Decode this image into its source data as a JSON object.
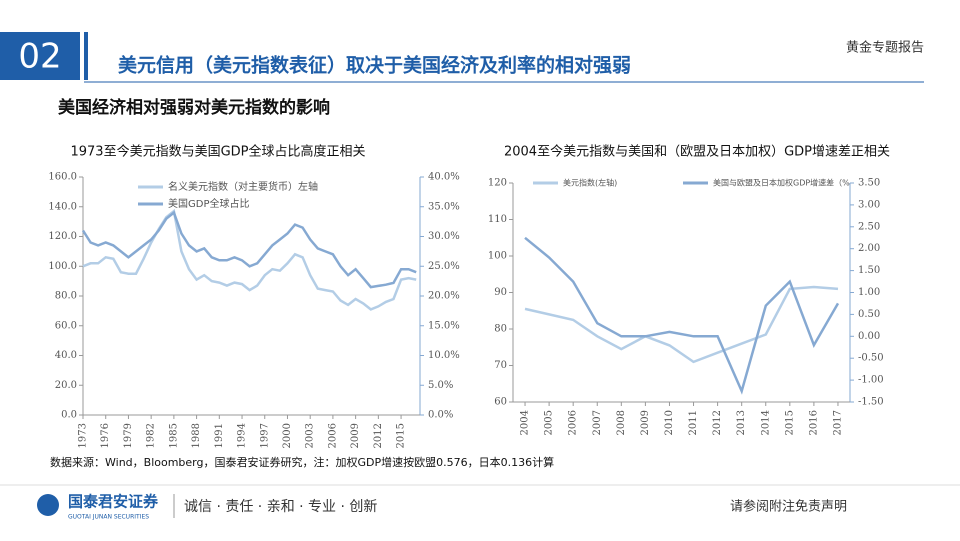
{
  "header": {
    "number": "02",
    "title": "美元信用（美元指数表征）取决于美国经济及利率的相对强弱",
    "report": "黄金专题报告",
    "subtitle": "美国经济相对强弱对美元指数的影响"
  },
  "chart_data": [
    {
      "type": "line",
      "title": "1973至今美元指数与美国GDP全球占比高度正相关",
      "x": [
        1973,
        1974,
        1975,
        1976,
        1977,
        1978,
        1979,
        1980,
        1981,
        1982,
        1983,
        1984,
        1985,
        1986,
        1987,
        1988,
        1989,
        1990,
        1991,
        1992,
        1993,
        1994,
        1995,
        1996,
        1997,
        1998,
        1999,
        2000,
        2001,
        2002,
        2003,
        2004,
        2005,
        2006,
        2007,
        2008,
        2009,
        2010,
        2011,
        2012,
        2013,
        2014,
        2015,
        2016,
        2017
      ],
      "series": [
        {
          "name": "名义美元指数（对主要货币）左轴",
          "color": "#b3cde6",
          "axis": "y",
          "values": [
            100,
            102,
            102,
            106,
            105,
            96,
            95,
            95,
            105,
            116,
            125,
            133,
            137,
            110,
            98,
            91,
            94,
            90,
            89,
            87,
            89,
            88,
            84,
            87,
            94,
            98,
            97,
            102,
            108,
            106,
            94,
            85,
            84,
            83,
            77,
            74,
            78,
            75,
            71,
            73,
            76,
            78,
            91,
            92,
            91
          ]
        },
        {
          "name": "美国GDP全球占比",
          "color": "#86a9d2",
          "axis": "y2",
          "values": [
            31,
            29,
            28.5,
            29,
            28.5,
            27.5,
            26.5,
            27.5,
            28.5,
            29.5,
            31,
            33,
            34,
            30.5,
            28.5,
            27.5,
            28,
            26.5,
            26,
            26,
            26.5,
            26,
            25,
            25.5,
            27,
            28.5,
            29.5,
            30.5,
            32,
            31.5,
            29.5,
            28,
            27.5,
            27,
            25,
            23.5,
            24.5,
            23,
            21.5,
            21.7,
            21.9,
            22.2,
            24.5,
            24.5,
            24
          ]
        }
      ],
      "xlim": [
        1973,
        2017.5
      ],
      "xticks": [
        1973,
        1976,
        1979,
        1982,
        1985,
        1988,
        1991,
        1994,
        1997,
        2000,
        2003,
        2006,
        2009,
        2012,
        2015
      ],
      "ylim": [
        0,
        160
      ],
      "yticks": [
        {
          "value": 0,
          "label": "0.0"
        },
        {
          "value": 20,
          "label": "20.0"
        },
        {
          "value": 40,
          "label": "40.0"
        },
        {
          "value": 60,
          "label": "60.0"
        },
        {
          "value": 80,
          "label": "80.0"
        },
        {
          "value": 100,
          "label": "100.0"
        },
        {
          "value": 120,
          "label": "120.0"
        },
        {
          "value": 140,
          "label": "140.0"
        },
        {
          "value": 160,
          "label": "160.0"
        }
      ],
      "y2lim": [
        0,
        40
      ],
      "y2ticks": [
        {
          "value": 0,
          "label": "0.0%"
        },
        {
          "value": 5,
          "label": "5.0%"
        },
        {
          "value": 10,
          "label": "10.0%"
        },
        {
          "value": 15,
          "label": "15.0%"
        },
        {
          "value": 20,
          "label": "20.0%"
        },
        {
          "value": 25,
          "label": "25.0%"
        },
        {
          "value": 30,
          "label": "30.0%"
        },
        {
          "value": 35,
          "label": "35.0%"
        },
        {
          "value": 40,
          "label": "40.0%"
        }
      ],
      "legend": "top-left"
    },
    {
      "type": "line",
      "title": "2004至今美元指数与美国和（欧盟及日本加权）GDP增速差正相关",
      "x": [
        2004,
        2005,
        2006,
        2007,
        2008,
        2009,
        2010,
        2011,
        2012,
        2013,
        2014,
        2015,
        2016,
        2017
      ],
      "series": [
        {
          "name": "美元指数(左轴)",
          "color": "#b3cde6",
          "axis": "y",
          "values": [
            85.5,
            84,
            82.5,
            78,
            74.5,
            78,
            75.5,
            71,
            73.5,
            76,
            78.5,
            91,
            91.5,
            91
          ]
        },
        {
          "name": "美国与欧盟及日本加权GDP增速差（%",
          "color": "#86a9d2",
          "axis": "y2",
          "values": [
            2.25,
            1.8,
            1.25,
            0.3,
            0,
            0,
            0.1,
            0,
            0,
            -1.25,
            0.7,
            1.25,
            -0.2,
            0.75
          ]
        }
      ],
      "xlim": [
        2003.5,
        2017.5
      ],
      "xticks": [
        2004,
        2005,
        2006,
        2007,
        2008,
        2009,
        2010,
        2011,
        2012,
        2013,
        2014,
        2015,
        2016,
        2017
      ],
      "ylim": [
        60,
        120
      ],
      "yticks": [
        60,
        70,
        80,
        90,
        100,
        110,
        120
      ],
      "y2lim": [
        -1.5,
        3.5
      ],
      "y2ticks": [
        {
          "value": -1.5,
          "label": "-1.50"
        },
        {
          "value": -1,
          "label": "-1.00"
        },
        {
          "value": -0.5,
          "label": "-0.50"
        },
        {
          "value": 0,
          "label": "0.00"
        },
        {
          "value": 0.5,
          "label": "0.50"
        },
        {
          "value": 1,
          "label": "1.00"
        },
        {
          "value": 1.5,
          "label": "1.50"
        },
        {
          "value": 2,
          "label": "2.00"
        },
        {
          "value": 2.5,
          "label": "2.50"
        },
        {
          "value": 3,
          "label": "3.00"
        },
        {
          "value": 3.5,
          "label": "3.50"
        }
      ],
      "legend": "top"
    }
  ],
  "source": "数据来源：Wind，Bloomberg，国泰君安证券研究，注：加权GDP增速按欧盟0.576，日本0.136计算",
  "footer": {
    "company": "国泰君安证券",
    "company_en": "GUOTAI JUNAN SECURITIES",
    "motto": "诚信 · 责任 · 亲和 · 专业 · 创新",
    "disclaimer": "请参阅附注免责声明"
  }
}
